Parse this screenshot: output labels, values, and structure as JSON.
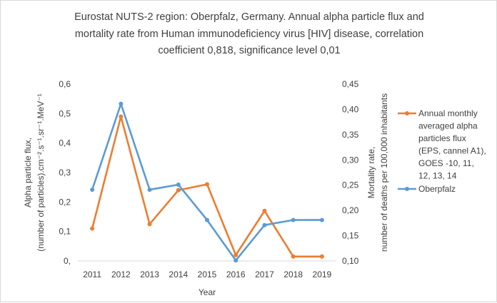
{
  "chart_data": {
    "type": "line",
    "title": [
      "Eurostat NUTS-2 region: Oberpfalz, Germany. Annual alpha particle flux and",
      "mortality rate from Human immunodeficiency virus [HIV] disease, correlation",
      "coefficient 0,818, significance level 0,01"
    ],
    "xlabel": "Year",
    "ylabel_left": [
      "Alpha particle flux,",
      "(number of particles).cm⁻².s⁻¹.sr⁻¹.MeV⁻¹"
    ],
    "ylabel_right": [
      "Mortality rate,",
      "number of deaths per 100,000 inhabitants"
    ],
    "categories": [
      "2011",
      "2012",
      "2013",
      "2014",
      "2015",
      "2016",
      "2017",
      "2018",
      "2019"
    ],
    "y_left": {
      "lim": [
        0,
        0.6
      ],
      "ticks": [
        "0,",
        "0,1",
        "0,2",
        "0,3",
        "0,4",
        "0,5",
        "0,6"
      ]
    },
    "y_right": {
      "lim": [
        0.1,
        0.45
      ],
      "ticks": [
        "0,10",
        "0,15",
        "0,20",
        "0,25",
        "0,30",
        "0,35",
        "0,40",
        "0,45"
      ]
    },
    "grid": false,
    "legend_position": "right",
    "series": [
      {
        "name": "Annual monthly averaged alpha particles flux (EPS, cannel A1), GOES -10, 11, 12, 13, 14",
        "legend_lines": [
          "Annual monthly",
          "averaged alpha",
          "particles flux",
          "(EPS, cannel A1),",
          "GOES -10, 11,",
          "12, 13, 14"
        ],
        "axis": "left",
        "color": "#ED7D31",
        "values": [
          0.11,
          0.49,
          0.125,
          0.24,
          0.26,
          0.02,
          0.17,
          0.015,
          0.015
        ]
      },
      {
        "name": "Oberpfalz",
        "legend_lines": [
          "Oberpfalz"
        ],
        "axis": "right",
        "color": "#5B9BD5",
        "values": [
          0.241,
          0.411,
          0.241,
          0.251,
          0.181,
          0.101,
          0.171,
          0.181,
          0.181
        ]
      }
    ]
  }
}
